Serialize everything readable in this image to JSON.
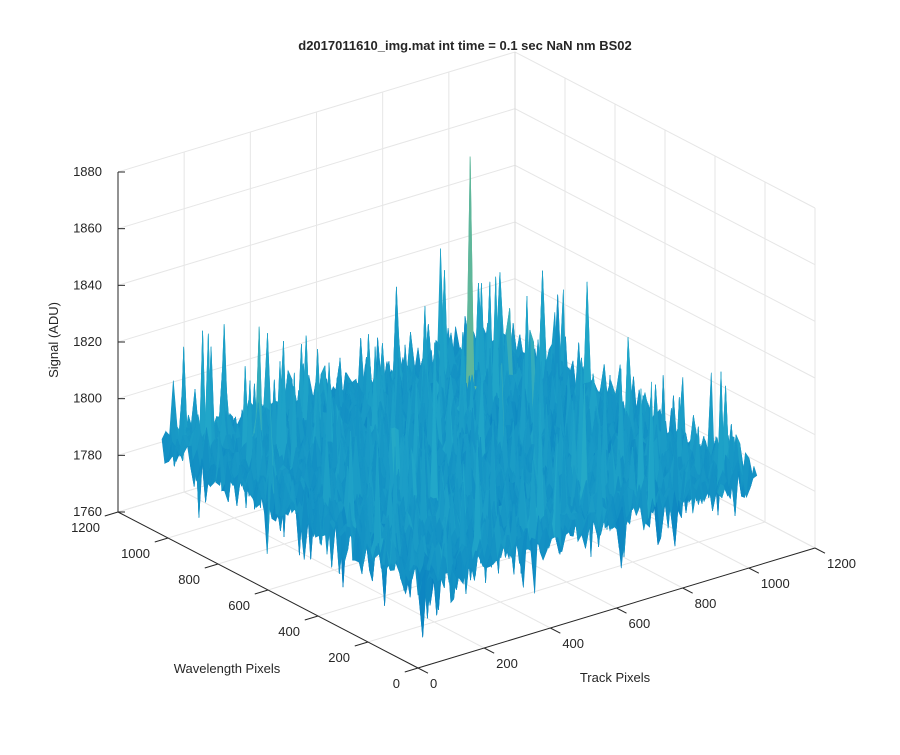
{
  "chart_data": {
    "type": "surface",
    "title": "d2017011610_img.mat int time = 0.1 sec  NaN nm BS02",
    "xlabel": "Track Pixels",
    "ylabel": "Wavelength Pixels",
    "zlabel": "Signal (ADU)",
    "xlim": [
      0,
      1200
    ],
    "ylim": [
      0,
      1200
    ],
    "zlim": [
      1760,
      1880
    ],
    "xticks": [
      0,
      200,
      400,
      600,
      800,
      1000,
      1200
    ],
    "yticks": [
      0,
      200,
      400,
      600,
      800,
      1000,
      1200
    ],
    "zticks": [
      1760,
      1780,
      1800,
      1820,
      1840,
      1860,
      1880
    ],
    "grid": true,
    "colormap": "parula",
    "data_extent": {
      "track_pixels": [
        0,
        1024
      ],
      "wavelength_pixels": [
        0,
        1024
      ]
    },
    "baseline_signal": 1792,
    "noise_range": [
      1762,
      1878
    ],
    "peak": {
      "track_pixel": 750,
      "wavelength_pixel": 780,
      "signal": 1878
    }
  },
  "colors": {
    "axis": "#262626",
    "grid": "#e6e6e6",
    "surface_low": "#0072bd",
    "surface_mid": "#22a8c9",
    "surface_high": "#c8d24a"
  }
}
